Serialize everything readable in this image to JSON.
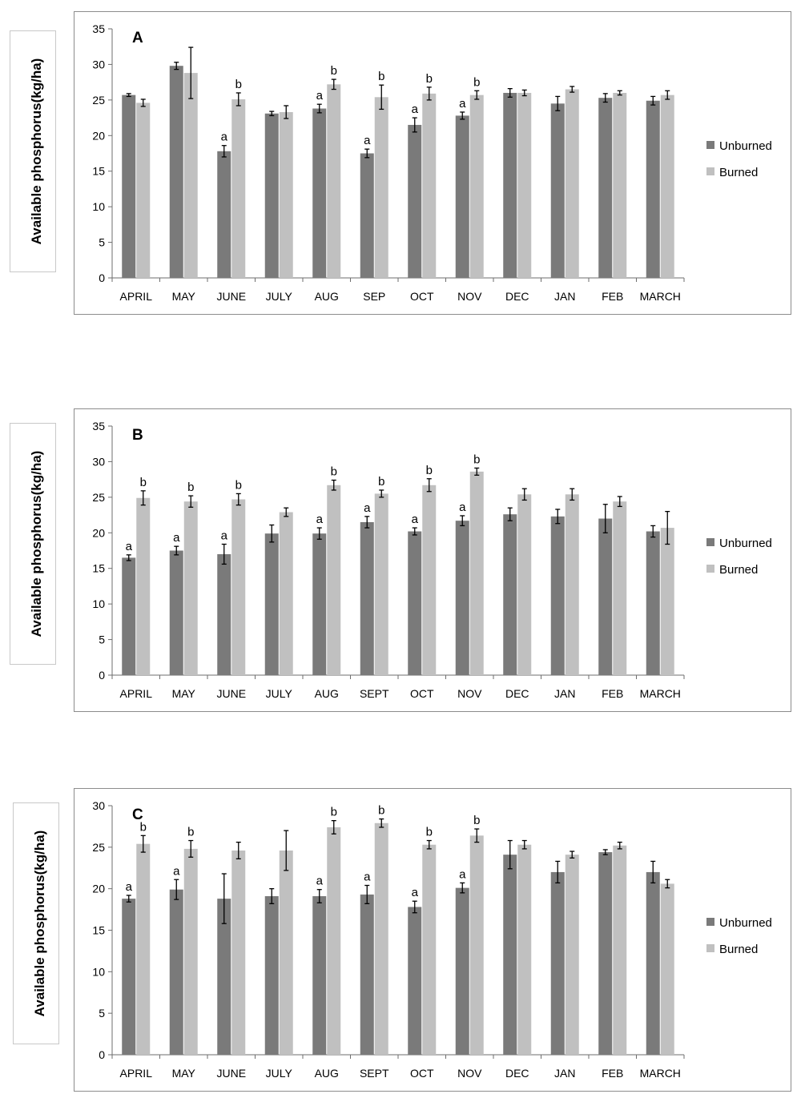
{
  "colors": {
    "unburned": "#7a7a7a",
    "burned": "#c0c0c0",
    "axis": "#6e6e6e",
    "frame": "#8c8c8c"
  },
  "chart_data": [
    {
      "type": "bar",
      "title": "A",
      "ylabel": "Available  phosphorus(kg/ha)",
      "ylim": [
        0,
        35
      ],
      "yticks": [
        0,
        5,
        10,
        15,
        20,
        25,
        30,
        35
      ],
      "grid": false,
      "legend_position": "right",
      "categories": [
        "APRIL",
        "MAY",
        "JUNE",
        "JULY",
        "AUG",
        "SEP",
        "OCT",
        "NOV",
        "DEC",
        "JAN",
        "FEB",
        "MARCH"
      ],
      "series": [
        {
          "name": "Unburned",
          "values": [
            25.7,
            29.8,
            17.8,
            23.1,
            23.8,
            17.5,
            21.5,
            22.8,
            26.0,
            24.5,
            25.3,
            24.9
          ],
          "errors": [
            0.2,
            0.5,
            0.8,
            0.3,
            0.6,
            0.6,
            1.0,
            0.5,
            0.6,
            1.0,
            0.6,
            0.6
          ],
          "labels": [
            "",
            "",
            "a",
            "",
            "a",
            "a",
            "a",
            "a",
            "",
            "",
            "",
            ""
          ]
        },
        {
          "name": "Burned",
          "values": [
            24.6,
            28.8,
            25.1,
            23.3,
            27.2,
            25.4,
            25.9,
            25.7,
            26.0,
            26.5,
            26.0,
            25.7
          ],
          "errors": [
            0.5,
            3.6,
            0.9,
            0.9,
            0.7,
            1.7,
            0.9,
            0.6,
            0.4,
            0.4,
            0.3,
            0.6
          ],
          "labels": [
            "",
            "",
            "b",
            "",
            "b",
            "b",
            "b",
            "b",
            "",
            "",
            "",
            ""
          ]
        }
      ]
    },
    {
      "type": "bar",
      "title": "B",
      "ylabel": "Available  phosphorus(kg/ha)",
      "ylim": [
        0,
        35
      ],
      "yticks": [
        0,
        5,
        10,
        15,
        20,
        25,
        30,
        35
      ],
      "grid": false,
      "legend_position": "right",
      "categories": [
        "APRIL",
        "MAY",
        "JUNE",
        "JULY",
        "AUG",
        "SEPT",
        "OCT",
        "NOV",
        "DEC",
        "JAN",
        "FEB",
        "MARCH"
      ],
      "series": [
        {
          "name": "Unburned",
          "values": [
            16.5,
            17.5,
            17.0,
            19.9,
            19.9,
            21.5,
            20.2,
            21.7,
            22.6,
            22.3,
            22.0,
            20.2
          ],
          "errors": [
            0.4,
            0.6,
            1.4,
            1.2,
            0.8,
            0.8,
            0.5,
            0.7,
            0.9,
            1.0,
            2.0,
            0.8
          ],
          "labels": [
            "a",
            "a",
            "a",
            "",
            "a",
            "a",
            "a",
            "a",
            "",
            "",
            "",
            ""
          ]
        },
        {
          "name": "Burned",
          "values": [
            24.9,
            24.4,
            24.7,
            22.9,
            26.7,
            25.5,
            26.7,
            28.6,
            25.4,
            25.4,
            24.4,
            20.7
          ],
          "errors": [
            1.0,
            0.8,
            0.8,
            0.6,
            0.7,
            0.5,
            0.9,
            0.5,
            0.8,
            0.8,
            0.7,
            2.3
          ],
          "labels": [
            "b",
            "b",
            "b",
            "",
            "b",
            "b",
            "b",
            "b",
            "",
            "",
            "",
            ""
          ]
        }
      ]
    },
    {
      "type": "bar",
      "title": "C",
      "ylabel": "Available  phosphorus(kg/ha)",
      "ylim": [
        0,
        30
      ],
      "yticks": [
        0,
        5,
        10,
        15,
        20,
        25,
        30
      ],
      "grid": false,
      "legend_position": "right",
      "categories": [
        "APRIL",
        "MAY",
        "JUNE",
        "JULY",
        "AUG",
        "SEPT",
        "OCT",
        "NOV",
        "DEC",
        "JAN",
        "FEB",
        "MARCH"
      ],
      "series": [
        {
          "name": "Unburned",
          "values": [
            18.8,
            19.9,
            18.8,
            19.1,
            19.1,
            19.3,
            17.8,
            20.1,
            24.1,
            22.0,
            24.4,
            22.0
          ],
          "errors": [
            0.4,
            1.2,
            3.0,
            0.9,
            0.8,
            1.1,
            0.7,
            0.6,
            1.7,
            1.3,
            0.3,
            1.3
          ],
          "labels": [
            "a",
            "a",
            "",
            "",
            "a",
            "a",
            "a",
            "a",
            "",
            "",
            "",
            ""
          ]
        },
        {
          "name": "Burned",
          "values": [
            25.4,
            24.8,
            24.6,
            24.6,
            27.4,
            27.9,
            25.3,
            26.4,
            25.3,
            24.1,
            25.2,
            20.6
          ],
          "errors": [
            1.0,
            1.0,
            1.0,
            2.4,
            0.8,
            0.5,
            0.5,
            0.8,
            0.5,
            0.4,
            0.4,
            0.5
          ],
          "labels": [
            "b",
            "b",
            "",
            "",
            "b",
            "b",
            "b",
            "b",
            "",
            "",
            "",
            ""
          ]
        }
      ]
    }
  ]
}
